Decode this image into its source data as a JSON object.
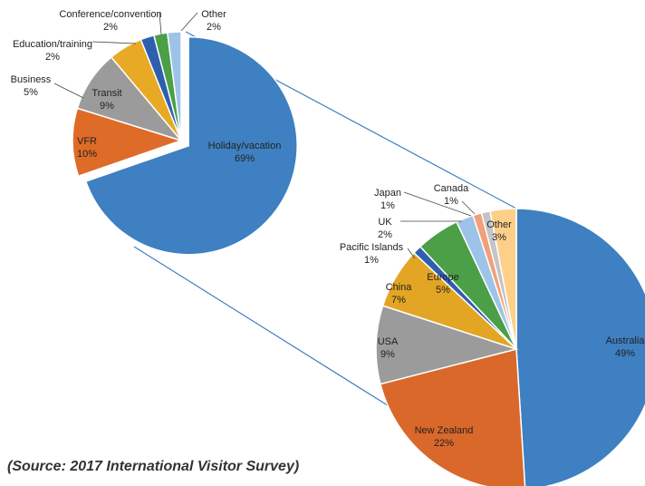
{
  "chart_data": [
    {
      "type": "pie",
      "categories": [
        "Holiday/vacation",
        "VFR",
        "Transit",
        "Business",
        "Education/training",
        "Conference/convention",
        "Other"
      ],
      "values": [
        69,
        10,
        9,
        5,
        2,
        2,
        2
      ],
      "value_labels": [
        "69%",
        "10%",
        "9%",
        "5%",
        "2%",
        "2%",
        "2%"
      ],
      "colors": [
        "#3e80c1",
        "#de6b27",
        "#9b9b9b",
        "#e8aa25",
        "#2e5faf",
        "#4a9f47",
        "#9ec3e8"
      ]
    },
    {
      "type": "pie",
      "categories": [
        "Australia",
        "New Zealand",
        "USA",
        "China",
        "Pacific Islands",
        "Europe",
        "UK",
        "Japan",
        "Canada",
        "Other"
      ],
      "values": [
        49,
        22,
        9,
        7,
        1,
        5,
        2,
        1,
        1,
        3
      ],
      "value_labels": [
        "49%",
        "22%",
        "9%",
        "7%",
        "1%",
        "5%",
        "2%",
        "1%",
        "1%",
        "3%"
      ],
      "colors": [
        "#3e80c1",
        "#d9682a",
        "#9b9b9b",
        "#e3a524",
        "#2e5faf",
        "#4a9f47",
        "#9ec3e8",
        "#f0a07a",
        "#c4c4c4",
        "#fdd08a"
      ]
    }
  ],
  "source": "(Source: 2017 International Visitor Survey)"
}
